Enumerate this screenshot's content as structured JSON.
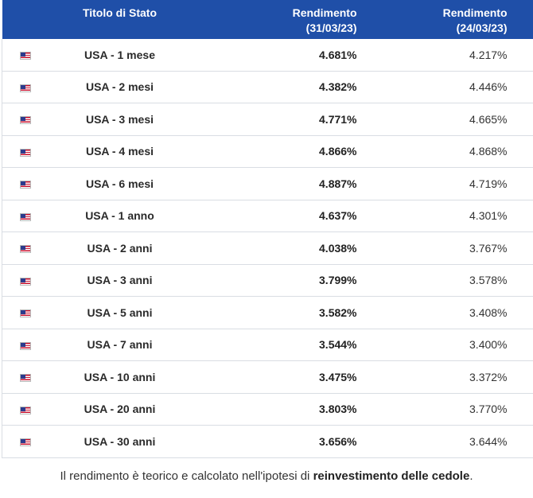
{
  "table": {
    "headers": {
      "name": "Titolo di Stato",
      "r1_line1": "Rendimento",
      "r1_line2": "(31/03/23)",
      "r2_line1": "Rendimento",
      "r2_line2": "(24/03/23)"
    },
    "rows": [
      {
        "name": "USA - 1 mese",
        "r1": "4.681%",
        "r2": "4.217%"
      },
      {
        "name": "USA - 2 mesi",
        "r1": "4.382%",
        "r2": "4.446%"
      },
      {
        "name": "USA - 3 mesi",
        "r1": "4.771%",
        "r2": "4.665%"
      },
      {
        "name": "USA - 4 mesi",
        "r1": "4.866%",
        "r2": "4.868%"
      },
      {
        "name": "USA - 6 mesi",
        "r1": "4.887%",
        "r2": "4.719%"
      },
      {
        "name": "USA - 1 anno",
        "r1": "4.637%",
        "r2": "4.301%"
      },
      {
        "name": "USA - 2 anni",
        "r1": "4.038%",
        "r2": "3.767%"
      },
      {
        "name": "USA - 3 anni",
        "r1": "3.799%",
        "r2": "3.578%"
      },
      {
        "name": "USA - 5 anni",
        "r1": "3.582%",
        "r2": "3.408%"
      },
      {
        "name": "USA - 7 anni",
        "r1": "3.544%",
        "r2": "3.400%"
      },
      {
        "name": "USA - 10 anni",
        "r1": "3.475%",
        "r2": "3.372%"
      },
      {
        "name": "USA - 20 anni",
        "r1": "3.803%",
        "r2": "3.770%"
      },
      {
        "name": "USA - 30 anni",
        "r1": "3.656%",
        "r2": "3.644%"
      }
    ],
    "flag_icon": "us-flag-icon"
  },
  "note": {
    "prefix": "Il rendimento è teorico e calcolato nell'ipotesi di ",
    "bold": "reinvestimento delle cedole",
    "suffix": "."
  },
  "colors": {
    "header_bg": "#1f4fa8",
    "header_text": "#ffffff",
    "row_border": "#d9dde3"
  }
}
